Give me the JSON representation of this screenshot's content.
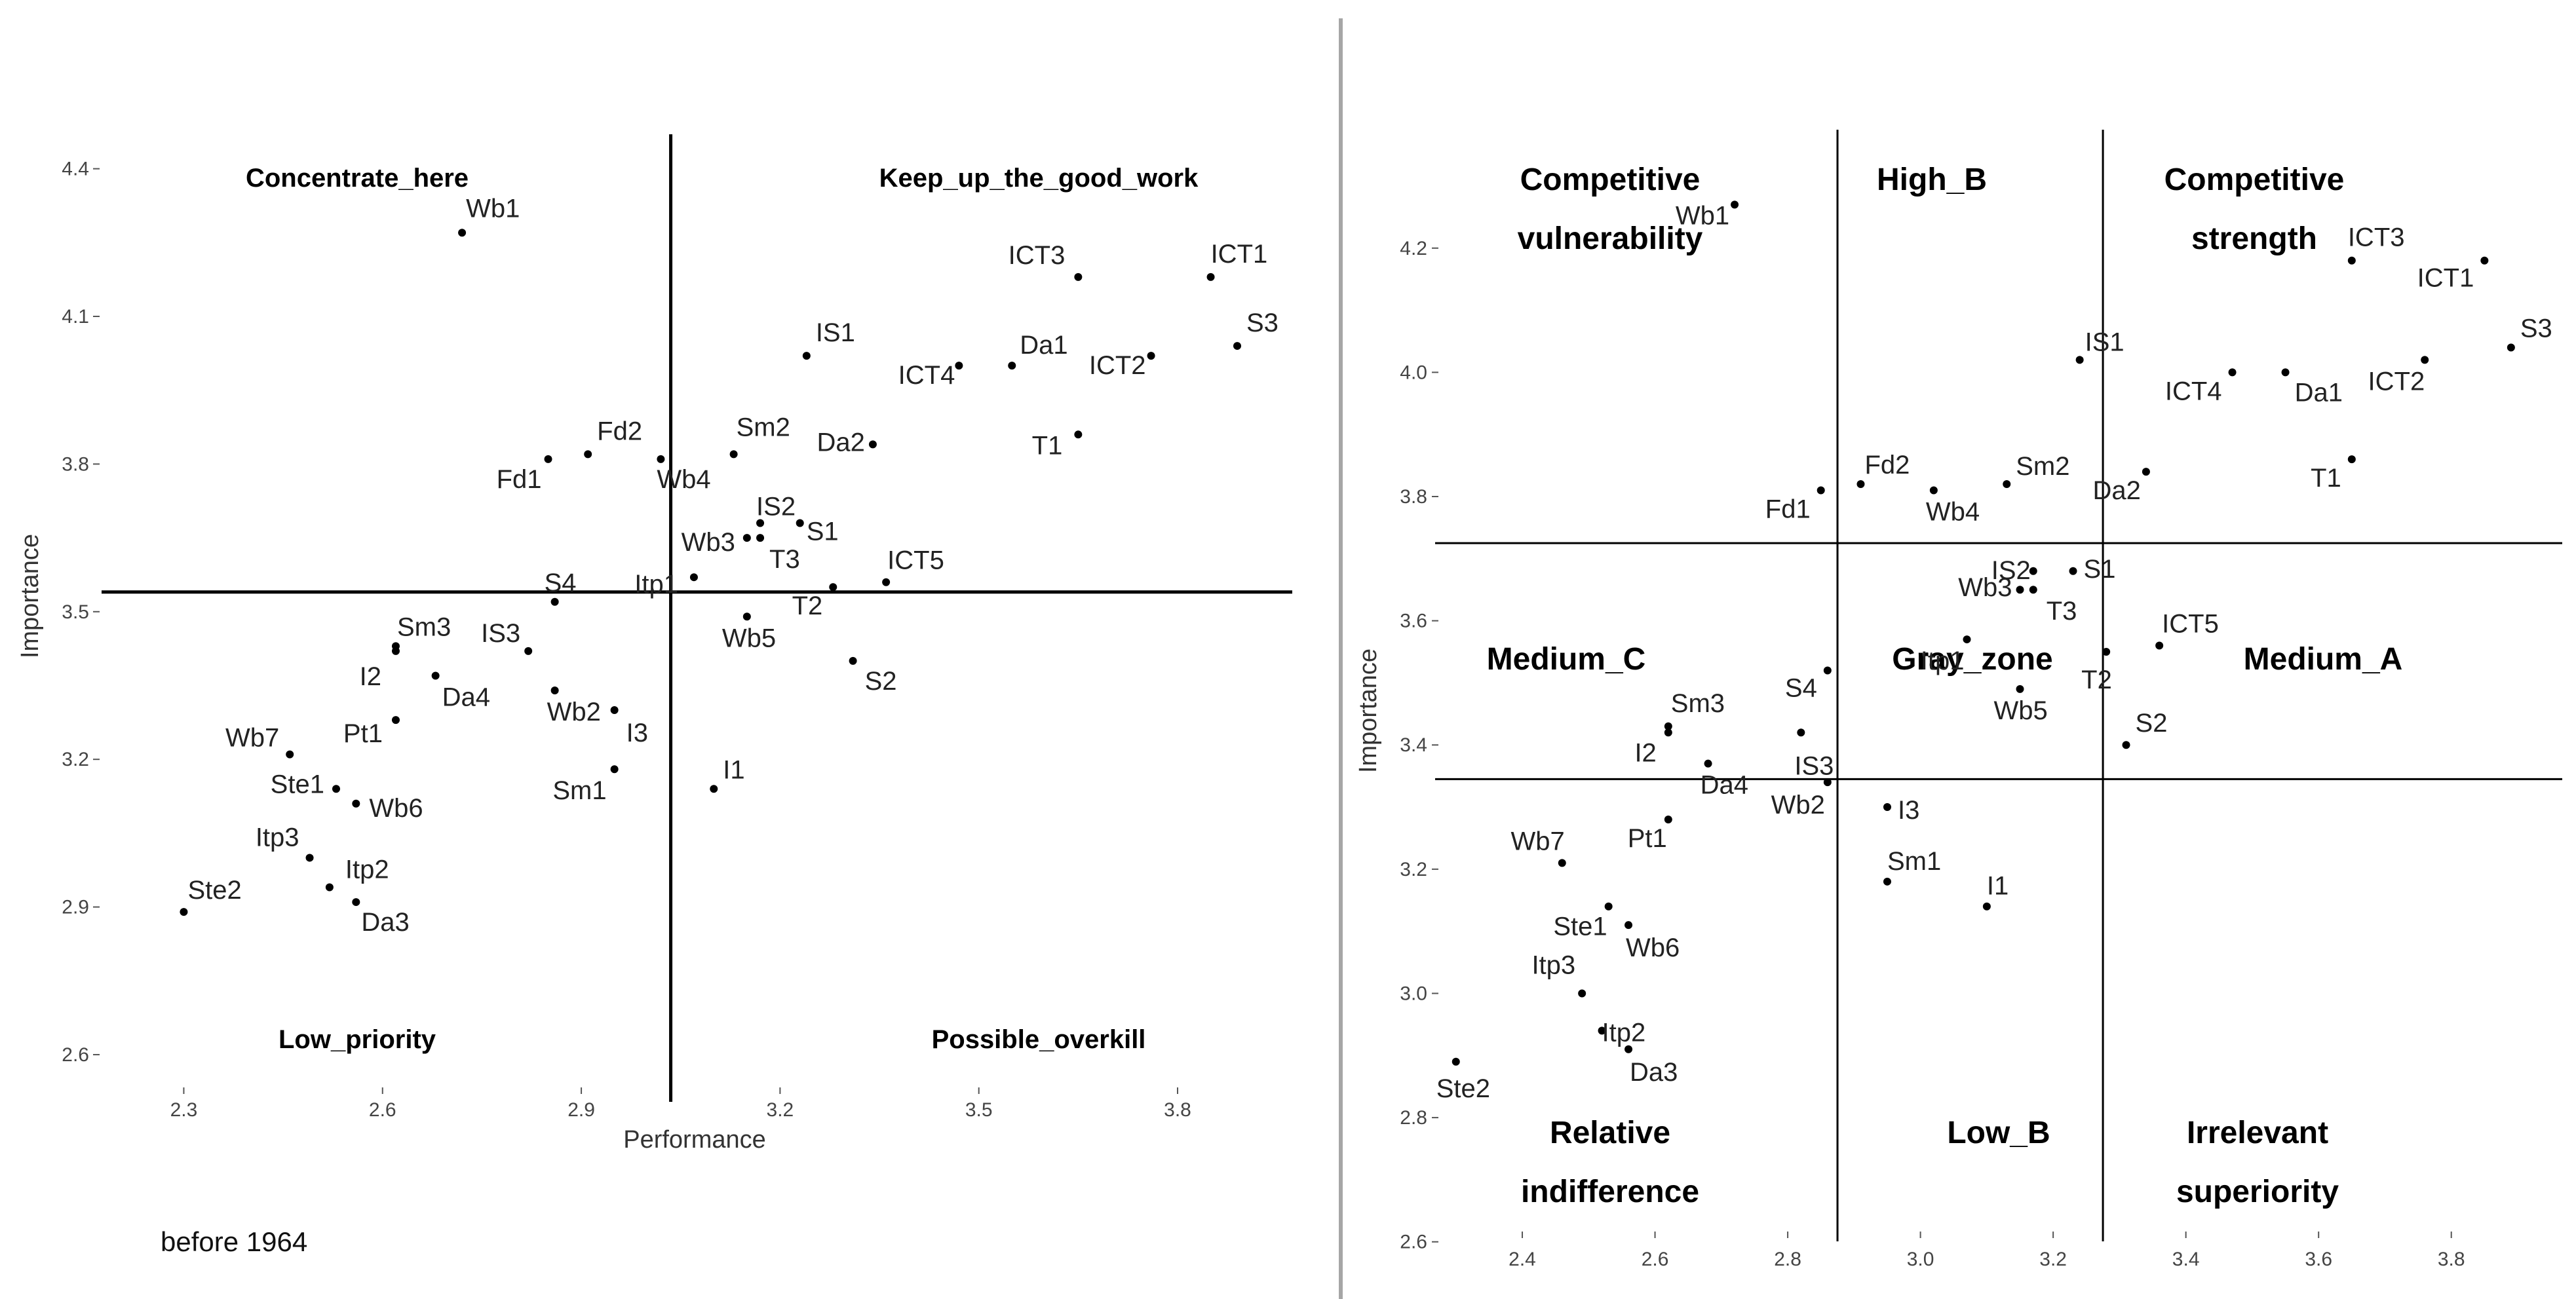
{
  "caption": "before 1964",
  "chart_data": [
    {
      "type": "scatter",
      "title": "",
      "xlabel": "Performance",
      "ylabel": "Importance",
      "xlim": [
        2.26,
        3.98
      ],
      "ylim": [
        2.58,
        4.47
      ],
      "xticks": [
        "2.3",
        "2.6",
        "2.9",
        "3.2",
        "3.5",
        "3.8"
      ],
      "yticks": [
        "2.6",
        "2.9",
        "3.2",
        "3.5",
        "3.8",
        "4.1",
        "4.4"
      ],
      "vline": 3.035,
      "hline": 3.54,
      "quadrants": [
        {
          "name": "top-left",
          "lines": [
            "Concentrate_here"
          ]
        },
        {
          "name": "top-right",
          "lines": [
            "Keep_up_the_good_work"
          ]
        },
        {
          "name": "bottom-left",
          "lines": [
            "Low_priority"
          ]
        },
        {
          "name": "bottom-right",
          "lines": [
            "Possible_overkill"
          ]
        }
      ],
      "points": [
        {
          "label": "Wb1",
          "x": 2.72,
          "y": 4.27
        },
        {
          "label": "ICT1",
          "x": 3.85,
          "y": 4.18
        },
        {
          "label": "ICT3",
          "x": 3.65,
          "y": 4.18
        },
        {
          "label": "S3",
          "x": 3.89,
          "y": 4.04
        },
        {
          "label": "IS1",
          "x": 3.24,
          "y": 4.02
        },
        {
          "label": "ICT2",
          "x": 3.76,
          "y": 4.02
        },
        {
          "label": "Da1",
          "x": 3.55,
          "y": 4.0
        },
        {
          "label": "ICT4",
          "x": 3.47,
          "y": 4.0
        },
        {
          "label": "T1",
          "x": 3.65,
          "y": 3.86
        },
        {
          "label": "Da2",
          "x": 3.34,
          "y": 3.84
        },
        {
          "label": "Sm2",
          "x": 3.13,
          "y": 3.82
        },
        {
          "label": "Fd2",
          "x": 2.91,
          "y": 3.82
        },
        {
          "label": "Fd1",
          "x": 2.85,
          "y": 3.81
        },
        {
          "label": "Wb4",
          "x": 3.02,
          "y": 3.81
        },
        {
          "label": "S1",
          "x": 3.23,
          "y": 3.68
        },
        {
          "label": "IS2",
          "x": 3.17,
          "y": 3.68
        },
        {
          "label": "T3",
          "x": 3.17,
          "y": 3.65
        },
        {
          "label": "Wb3",
          "x": 3.15,
          "y": 3.65
        },
        {
          "label": "Itp1",
          "x": 3.07,
          "y": 3.57
        },
        {
          "label": "ICT5",
          "x": 3.36,
          "y": 3.56
        },
        {
          "label": "T2",
          "x": 3.28,
          "y": 3.55
        },
        {
          "label": "S4",
          "x": 2.86,
          "y": 3.52
        },
        {
          "label": "Wb5",
          "x": 3.15,
          "y": 3.49
        },
        {
          "label": "Sm3",
          "x": 2.62,
          "y": 3.43
        },
        {
          "label": "IS3",
          "x": 2.82,
          "y": 3.42
        },
        {
          "label": "I2",
          "x": 2.62,
          "y": 3.42
        },
        {
          "label": "S2",
          "x": 3.31,
          "y": 3.4
        },
        {
          "label": "Da4",
          "x": 2.68,
          "y": 3.37
        },
        {
          "label": "Wb2",
          "x": 2.86,
          "y": 3.34
        },
        {
          "label": "I3",
          "x": 2.95,
          "y": 3.3
        },
        {
          "label": "Pt1",
          "x": 2.62,
          "y": 3.28
        },
        {
          "label": "Wb7",
          "x": 2.46,
          "y": 3.21
        },
        {
          "label": "Sm1",
          "x": 2.95,
          "y": 3.18
        },
        {
          "label": "Ste1",
          "x": 2.53,
          "y": 3.14
        },
        {
          "label": "I1",
          "x": 3.1,
          "y": 3.14
        },
        {
          "label": "Wb6",
          "x": 2.56,
          "y": 3.11
        },
        {
          "label": "Itp3",
          "x": 2.49,
          "y": 3.0
        },
        {
          "label": "Itp2",
          "x": 2.52,
          "y": 2.94
        },
        {
          "label": "Da3",
          "x": 2.56,
          "y": 2.91
        },
        {
          "label": "Ste2",
          "x": 2.3,
          "y": 2.89
        }
      ]
    },
    {
      "type": "scatter",
      "title": "",
      "xlabel": "",
      "ylabel": "Importance",
      "xlim": [
        2.24,
        3.98
      ],
      "ylim": [
        2.49,
        4.32
      ],
      "xticks": [
        "2.4",
        "2.6",
        "2.8",
        "3.0",
        "3.2",
        "3.4",
        "3.6",
        "3.8"
      ],
      "yticks": [
        "2.6",
        "2.8",
        "3.0",
        "3.2",
        "3.4",
        "3.6",
        "3.8",
        "4.0",
        "4.2"
      ],
      "vlines": [
        2.875,
        3.275
      ],
      "hlines": [
        3.725,
        3.345
      ],
      "quadrants": [
        {
          "name": "top-left",
          "lines": [
            "Competitive",
            "vulnerability"
          ]
        },
        {
          "name": "top-middle",
          "lines": [
            "High_B"
          ]
        },
        {
          "name": "top-right",
          "lines": [
            "Competitive",
            "strength"
          ]
        },
        {
          "name": "middle-left",
          "lines": [
            "Medium_C"
          ]
        },
        {
          "name": "middle-middle",
          "lines": [
            "Gray_zone"
          ]
        },
        {
          "name": "middle-right",
          "lines": [
            "Medium_A"
          ]
        },
        {
          "name": "bottom-left",
          "lines": [
            "Relative",
            "indifference"
          ]
        },
        {
          "name": "bottom-middle",
          "lines": [
            "Low_B"
          ]
        },
        {
          "name": "bottom-right",
          "lines": [
            "Irrelevant",
            "superiority"
          ]
        }
      ],
      "points": [
        {
          "label": "Wb1",
          "x": 2.72,
          "y": 4.27
        },
        {
          "label": "ICT1",
          "x": 3.85,
          "y": 4.18
        },
        {
          "label": "ICT3",
          "x": 3.65,
          "y": 4.18
        },
        {
          "label": "S3",
          "x": 3.89,
          "y": 4.04
        },
        {
          "label": "IS1",
          "x": 3.24,
          "y": 4.02
        },
        {
          "label": "ICT2",
          "x": 3.76,
          "y": 4.02
        },
        {
          "label": "Da1",
          "x": 3.55,
          "y": 4.0
        },
        {
          "label": "ICT4",
          "x": 3.47,
          "y": 4.0
        },
        {
          "label": "T1",
          "x": 3.65,
          "y": 3.86
        },
        {
          "label": "Da2",
          "x": 3.34,
          "y": 3.84
        },
        {
          "label": "Sm2",
          "x": 3.13,
          "y": 3.82
        },
        {
          "label": "Fd2",
          "x": 2.91,
          "y": 3.82
        },
        {
          "label": "Fd1",
          "x": 2.85,
          "y": 3.81
        },
        {
          "label": "Wb4",
          "x": 3.02,
          "y": 3.81
        },
        {
          "label": "S1",
          "x": 3.23,
          "y": 3.68
        },
        {
          "label": "IS2",
          "x": 3.17,
          "y": 3.68
        },
        {
          "label": "T3",
          "x": 3.17,
          "y": 3.65
        },
        {
          "label": "Wb3",
          "x": 3.15,
          "y": 3.65
        },
        {
          "label": "Itp1",
          "x": 3.07,
          "y": 3.57
        },
        {
          "label": "ICT5",
          "x": 3.36,
          "y": 3.56
        },
        {
          "label": "T2",
          "x": 3.28,
          "y": 3.55
        },
        {
          "label": "S4",
          "x": 2.86,
          "y": 3.52
        },
        {
          "label": "Wb5",
          "x": 3.15,
          "y": 3.49
        },
        {
          "label": "Sm3",
          "x": 2.62,
          "y": 3.43
        },
        {
          "label": "IS3",
          "x": 2.82,
          "y": 3.42
        },
        {
          "label": "I2",
          "x": 2.62,
          "y": 3.42
        },
        {
          "label": "S2",
          "x": 3.31,
          "y": 3.4
        },
        {
          "label": "Da4",
          "x": 2.68,
          "y": 3.37
        },
        {
          "label": "Wb2",
          "x": 2.86,
          "y": 3.34
        },
        {
          "label": "I3",
          "x": 2.95,
          "y": 3.3
        },
        {
          "label": "Pt1",
          "x": 2.62,
          "y": 3.28
        },
        {
          "label": "Wb7",
          "x": 2.46,
          "y": 3.21
        },
        {
          "label": "Sm1",
          "x": 2.95,
          "y": 3.18
        },
        {
          "label": "Ste1",
          "x": 2.53,
          "y": 3.14
        },
        {
          "label": "I1",
          "x": 3.1,
          "y": 3.14
        },
        {
          "label": "Wb6",
          "x": 2.56,
          "y": 3.11
        },
        {
          "label": "Itp3",
          "x": 2.49,
          "y": 3.0
        },
        {
          "label": "Itp2",
          "x": 2.52,
          "y": 2.94
        },
        {
          "label": "Da3",
          "x": 2.56,
          "y": 2.91
        },
        {
          "label": "Ste2",
          "x": 2.3,
          "y": 2.89
        }
      ]
    }
  ]
}
